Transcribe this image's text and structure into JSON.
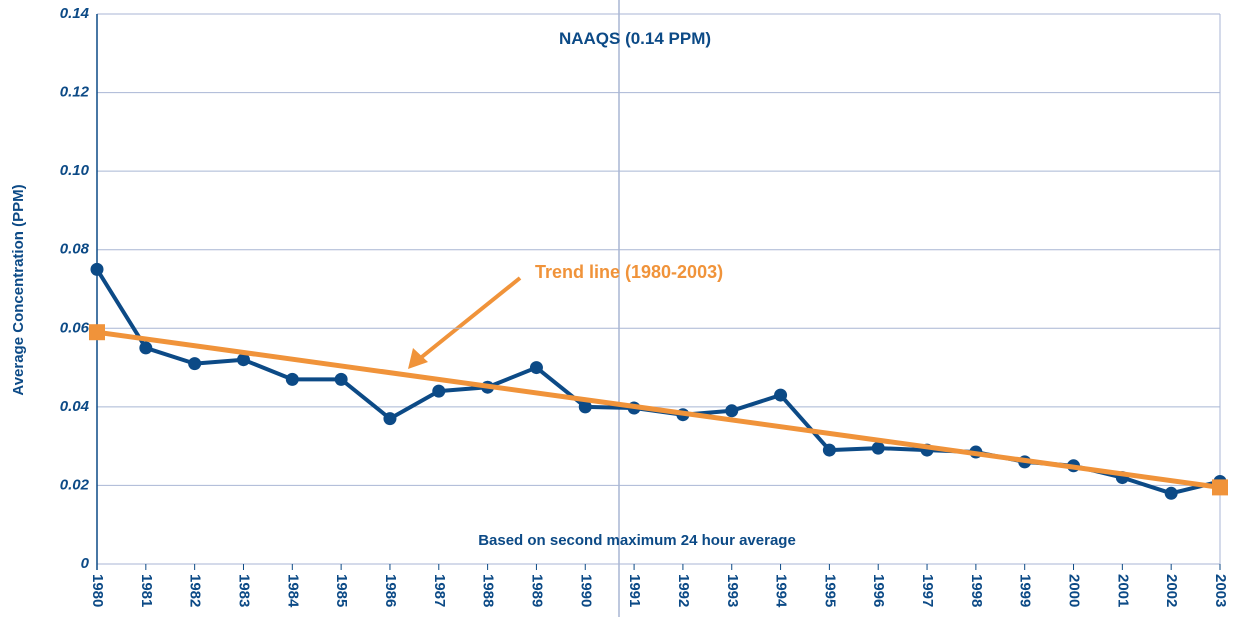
{
  "chart_data": {
    "type": "line",
    "y_label": "Average Concentration (PPM)",
    "annotations": [
      "NAAQS (0.14 PPM)",
      "Based on second maximum 24 hour average"
    ],
    "categories": [
      "1980",
      "1981",
      "1982",
      "1983",
      "1984",
      "1985",
      "1986",
      "1987",
      "1988",
      "1989",
      "1990",
      "1991",
      "1992",
      "1993",
      "1994",
      "1995",
      "1996",
      "1997",
      "1998",
      "1999",
      "2000",
      "2001",
      "2002",
      "2003"
    ],
    "series": [
      {
        "color": "#0c4a86",
        "values": [
          0.075,
          0.055,
          0.051,
          0.052,
          0.047,
          0.047,
          0.037,
          0.044,
          0.045,
          0.05,
          0.04,
          0.0397,
          0.038,
          0.039,
          0.043,
          0.029,
          0.0295,
          0.029,
          0.0285,
          0.026,
          0.025,
          0.022,
          0.018,
          0.021
        ]
      }
    ],
    "trend_line": {
      "label": "Trend line (1980-2003)",
      "color": "#f0933a",
      "x": [
        "1980",
        "2003"
      ],
      "values": [
        0.059,
        0.0195
      ]
    },
    "ylim": [
      0,
      0.14
    ],
    "yticks": [
      0,
      0.02,
      0.04,
      0.06,
      0.08,
      {
        "value": 0.1,
        "label": "0.10"
      },
      0.12,
      0.14
    ],
    "grid": true
  }
}
